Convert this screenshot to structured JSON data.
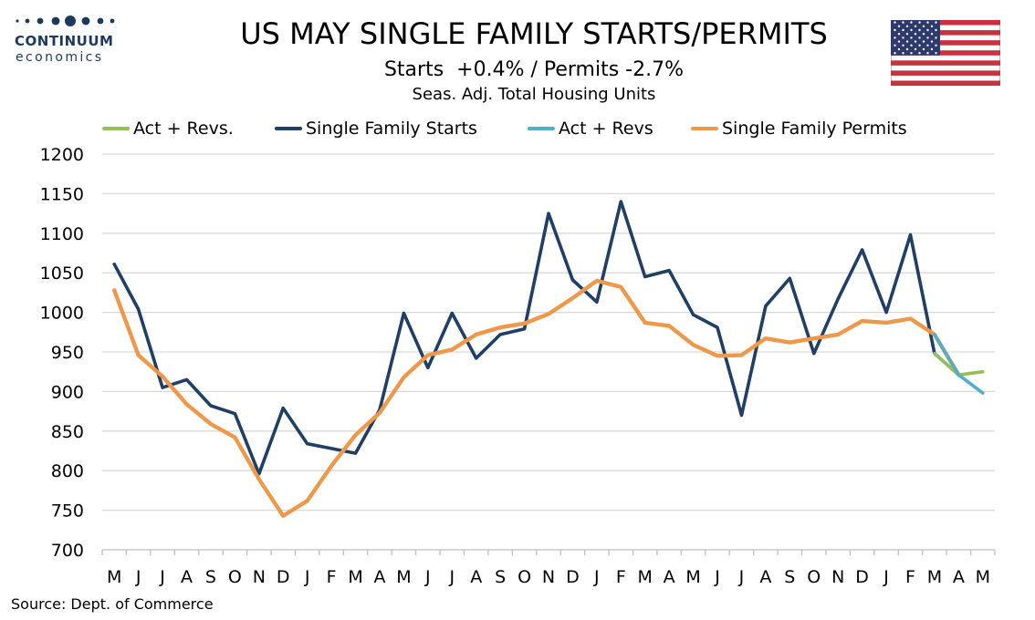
{
  "header": {
    "title": "US MAY SINGLE FAMILY STARTS/PERMITS",
    "subtitle": "Starts  +0.4% / Permits -2.7%",
    "subtitle2": "Seas. Adj. Total Housing Units"
  },
  "logo": {
    "brand": "CONTINUUM",
    "sub": "economics",
    "color": "#1b3a5c"
  },
  "flag": {
    "icon": "us-flag-icon"
  },
  "source": "Source: Dept. of Commerce",
  "colors": {
    "starts": "#1f3f66",
    "permits": "#f0984a",
    "starts_rev": "#93c05a",
    "permits_rev": "#4fb0c6",
    "grid": "#d9d9d9",
    "axis": "#bfbfbf"
  },
  "chart_data": {
    "type": "line",
    "title": "US MAY SINGLE FAMILY STARTS/PERMITS",
    "subtitle": "Starts  +0.4% / Permits -2.7%",
    "ylabel": "",
    "xlabel": "",
    "ylim": [
      700,
      1200
    ],
    "yticks": [
      700,
      750,
      800,
      850,
      900,
      950,
      1000,
      1050,
      1100,
      1150,
      1200
    ],
    "grid": true,
    "legend_position": "top",
    "categories": [
      "M",
      "J",
      "J",
      "A",
      "S",
      "O",
      "N",
      "D",
      "J",
      "F",
      "M",
      "A",
      "M",
      "J",
      "J",
      "A",
      "S",
      "O",
      "N",
      "D",
      "J",
      "F",
      "M",
      "A",
      "M",
      "J",
      "J",
      "A",
      "S",
      "O",
      "N",
      "D",
      "J",
      "F",
      "M",
      "A",
      "M"
    ],
    "legend": [
      "Act + Revs.",
      "Single Family Starts",
      "Act + Revs",
      "Single Family Permits"
    ],
    "series": [
      {
        "name": "Single Family Starts",
        "values": [
          1061,
          1004,
          905,
          915,
          882,
          872,
          796,
          879,
          834,
          828,
          822,
          877,
          999,
          930,
          999,
          942,
          972,
          979,
          1125,
          1041,
          1013,
          1140,
          1045,
          1053,
          997,
          981,
          870,
          1008,
          1043,
          948,
          1017,
          1079,
          1000,
          1098,
          948,
          921,
          null
        ]
      },
      {
        "name": "Single Family Permits",
        "values": [
          1028,
          946,
          919,
          884,
          859,
          842,
          789,
          743,
          762,
          806,
          845,
          873,
          918,
          946,
          953,
          972,
          981,
          986,
          998,
          1018,
          1040,
          1032,
          987,
          983,
          959,
          945,
          946,
          967,
          962,
          967,
          972,
          989,
          987,
          992,
          972,
          921,
          null
        ]
      },
      {
        "name": "Act + Revs.",
        "values": [
          null,
          null,
          null,
          null,
          null,
          null,
          null,
          null,
          null,
          null,
          null,
          null,
          null,
          null,
          null,
          null,
          null,
          null,
          null,
          null,
          null,
          null,
          null,
          null,
          null,
          null,
          null,
          null,
          null,
          null,
          null,
          null,
          null,
          null,
          948,
          921,
          925
        ]
      },
      {
        "name": "Act + Revs",
        "values": [
          null,
          null,
          null,
          null,
          null,
          null,
          null,
          null,
          null,
          null,
          null,
          null,
          null,
          null,
          null,
          null,
          null,
          null,
          null,
          null,
          null,
          null,
          null,
          null,
          null,
          null,
          null,
          null,
          null,
          null,
          null,
          null,
          null,
          null,
          972,
          921,
          898
        ]
      }
    ]
  }
}
